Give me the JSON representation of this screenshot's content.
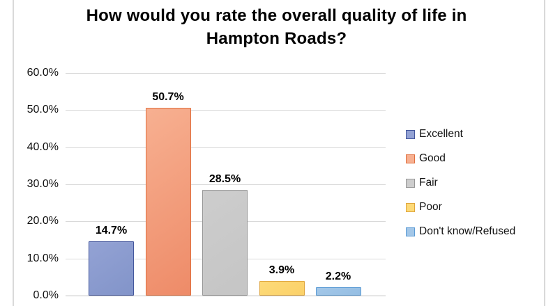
{
  "chart_data": {
    "type": "bar",
    "title": "How would you rate the overall quality of life in Hampton Roads?",
    "categories": [
      "Excellent",
      "Good",
      "Fair",
      "Poor",
      "Don't know/Refused"
    ],
    "values": [
      14.7,
      50.7,
      28.5,
      3.9,
      2.2
    ],
    "data_labels": [
      "14.7%",
      "50.7%",
      "28.5%",
      "3.9%",
      "2.2%"
    ],
    "xlabel": "",
    "ylabel": "",
    "ylim": [
      0,
      60
    ],
    "yticks": [
      0,
      10,
      20,
      30,
      40,
      50,
      60
    ],
    "ytick_labels": [
      "0.0%",
      "10.0%",
      "20.0%",
      "30.0%",
      "40.0%",
      "50.0%",
      "60.0%"
    ],
    "grid": true,
    "legend_position": "right",
    "colors": [
      {
        "name": "Excellent",
        "fill": "#93a2d4",
        "fill_dark": "#8294c9",
        "border": "#44579d"
      },
      {
        "name": "Good",
        "fill": "#f7b091",
        "fill_dark": "#ee8b68",
        "border": "#e0703f"
      },
      {
        "name": "Fair",
        "fill": "#cdcdcd",
        "fill_dark": "#c5c5c5",
        "border": "#979797"
      },
      {
        "name": "Poor",
        "fill": "#fdda78",
        "fill_dark": "#fbd169",
        "border": "#dfa63d"
      },
      {
        "name": "Don't know/Refused",
        "fill": "#a3c7e8",
        "fill_dark": "#95bee3",
        "border": "#5b9bd5"
      }
    ],
    "style": {
      "gridline_color": "#d9d9d9",
      "axis_line_color": "#bfbfbf",
      "text_color": "#000000"
    }
  }
}
